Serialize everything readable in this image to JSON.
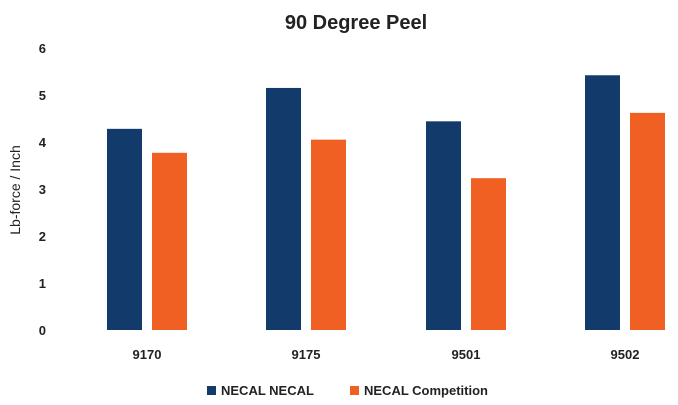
{
  "chart_data": {
    "type": "bar",
    "title": "90 Degree Peel",
    "xlabel": "",
    "ylabel": "Lb-force / Inch",
    "ylim": [
      0,
      6
    ],
    "yticks": [
      0,
      1,
      2,
      3,
      4,
      5,
      6
    ],
    "grid": false,
    "legend_position": "bottom",
    "categories": [
      "9170",
      "9175",
      "9501",
      "9502"
    ],
    "series": [
      {
        "name": "NECAL NECAL",
        "color": "#123a6b",
        "values": [
          4.28,
          5.15,
          4.44,
          5.42
        ]
      },
      {
        "name": "NECAL Competition",
        "color": "#f06022",
        "values": [
          3.77,
          4.05,
          3.23,
          4.62
        ]
      }
    ]
  }
}
